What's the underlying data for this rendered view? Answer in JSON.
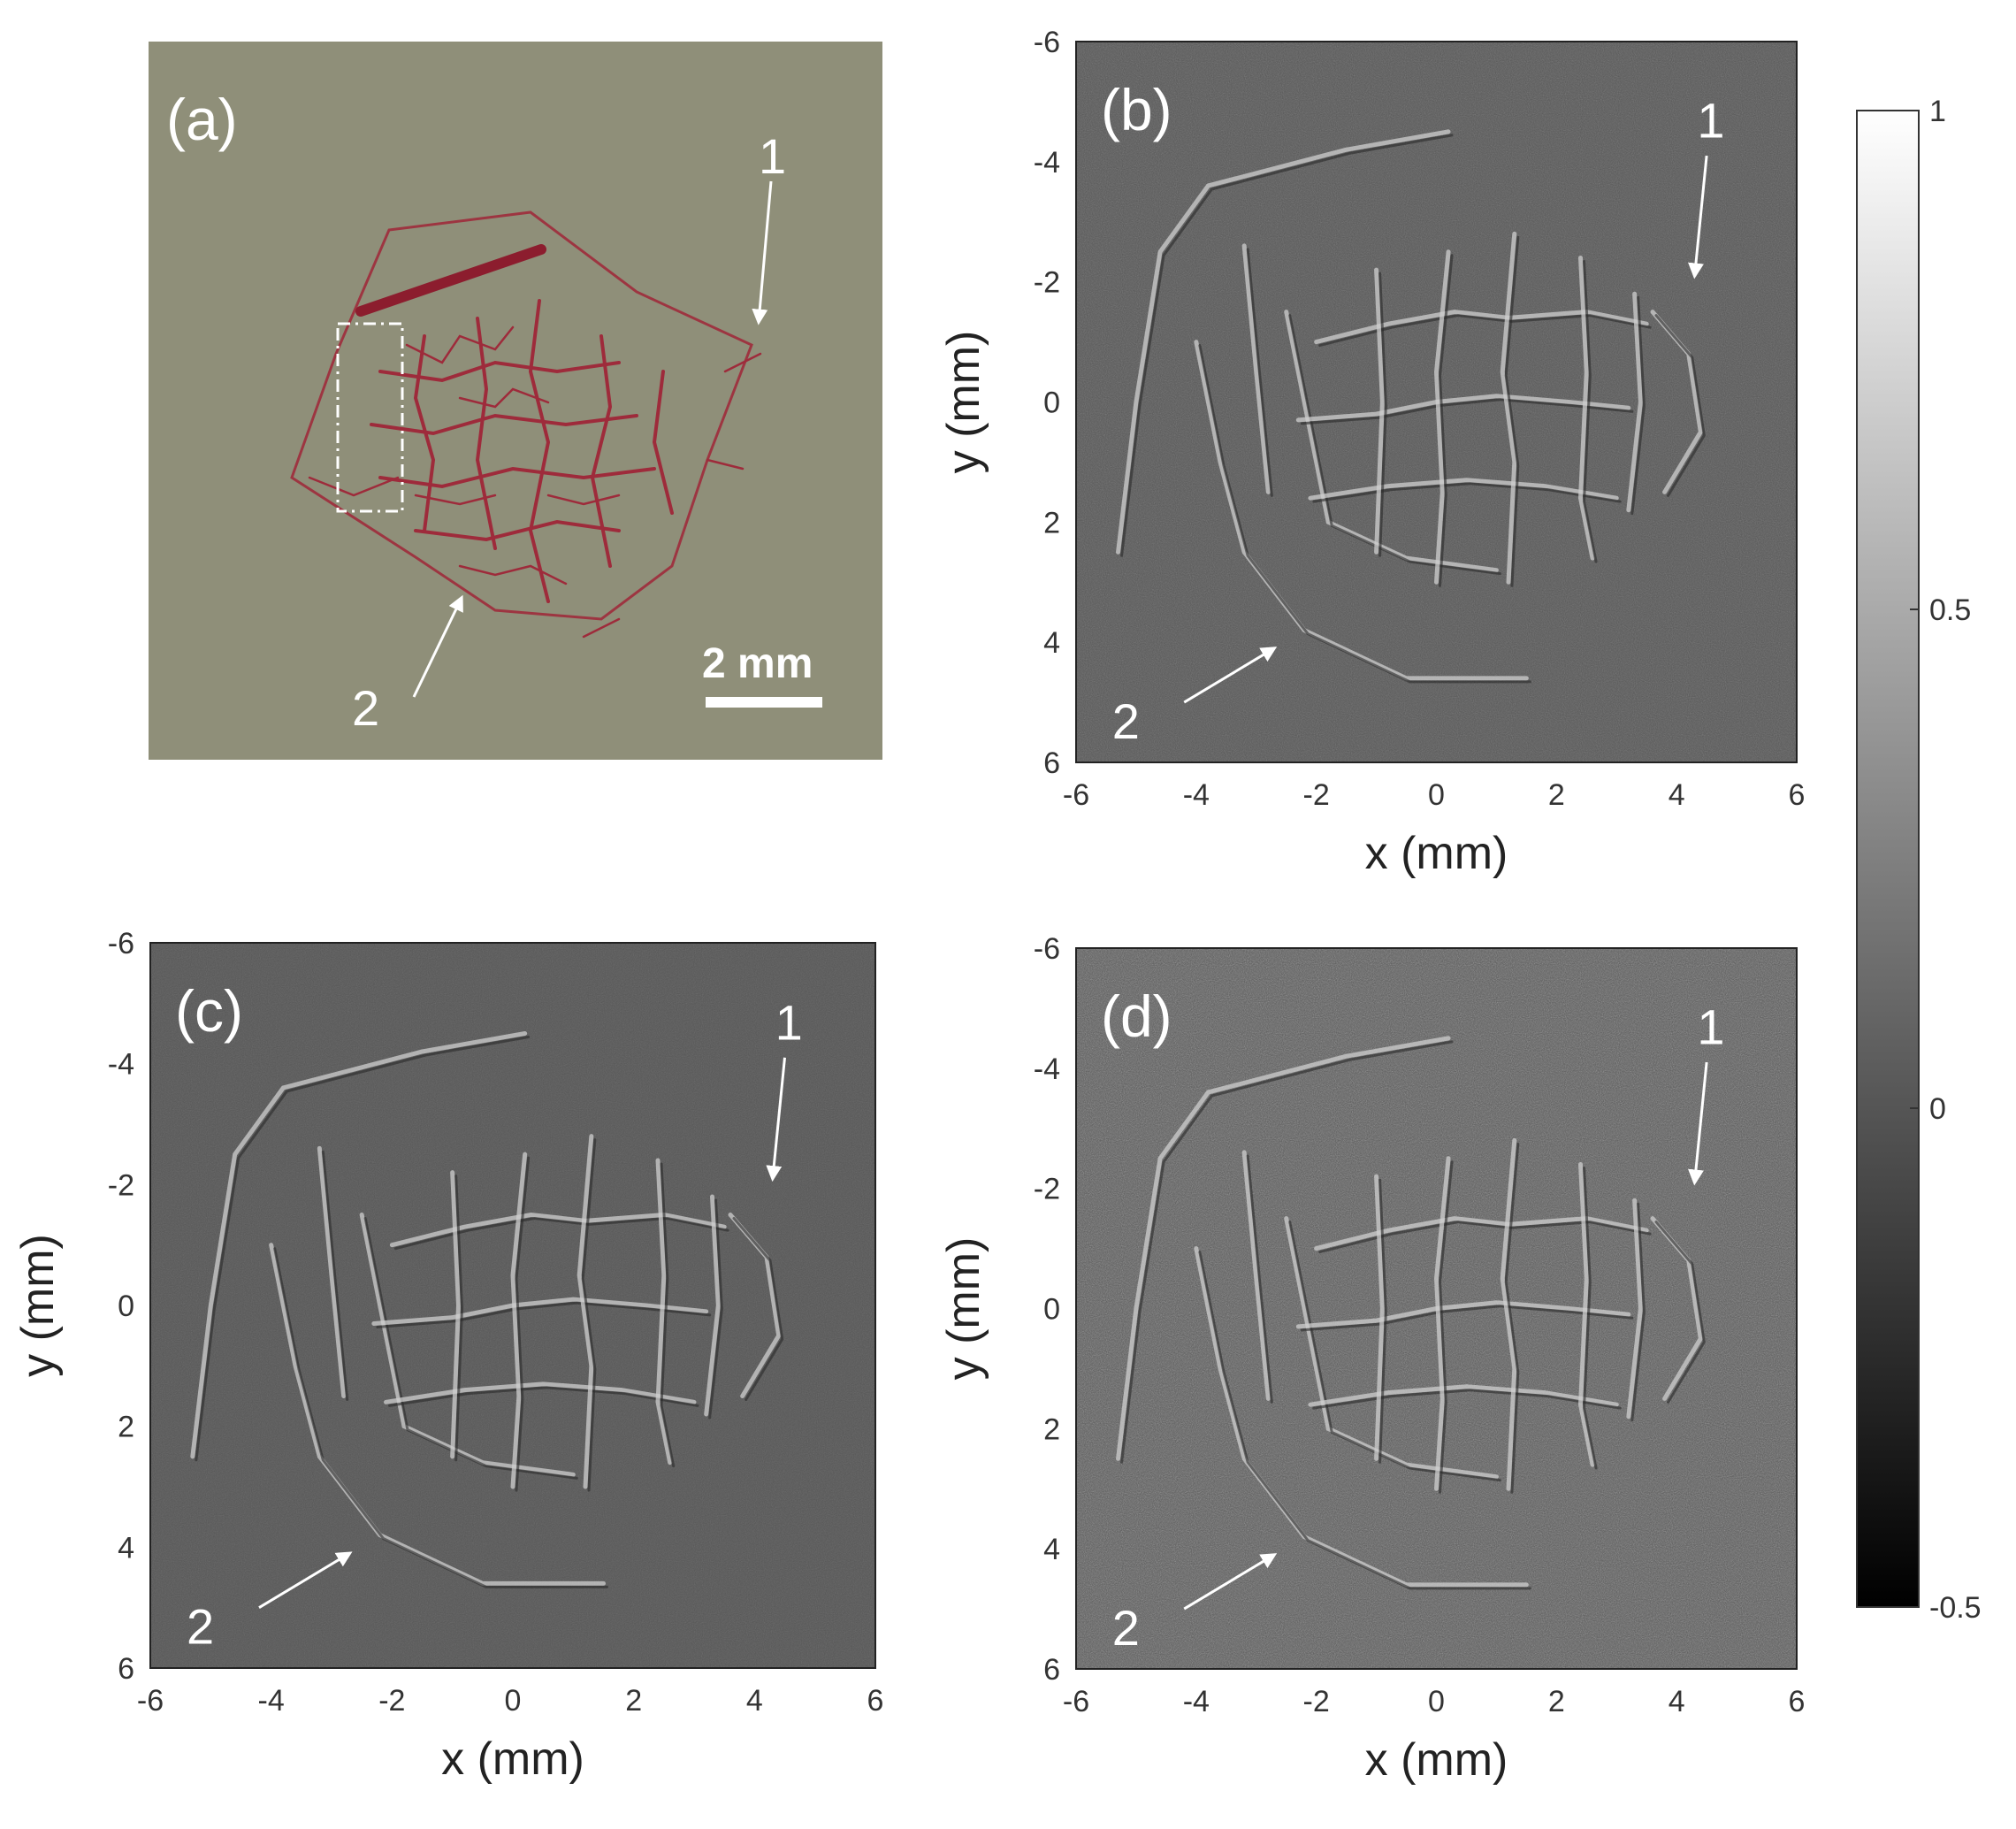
{
  "figure": {
    "panels": [
      {
        "label": "(a)",
        "kind": "photograph",
        "arrow_labels": [
          "1",
          "2"
        ],
        "scale_bar": "2 mm",
        "photo_background": "#8f8f79",
        "vein_color": "#9e2b3b"
      },
      {
        "label": "(b)",
        "kind": "reconstruction",
        "arrow_labels": [
          "1",
          "2"
        ],
        "xlabel": "x  (mm)",
        "ylabel": "y  (mm)",
        "xticks": [
          "-6",
          "-4",
          "-2",
          "0",
          "2",
          "4",
          "6"
        ],
        "yticks": [
          "-6",
          "-4",
          "-2",
          "0",
          "2",
          "4",
          "6"
        ],
        "xlim": [
          -6,
          6
        ],
        "ylim": [
          -6,
          6
        ],
        "y_axis_reversed": true,
        "noise_level": "medium"
      },
      {
        "label": "(c)",
        "kind": "reconstruction",
        "arrow_labels": [
          "1",
          "2"
        ],
        "xlabel": "x  (mm)",
        "ylabel": "y  (mm)",
        "xticks": [
          "-6",
          "-4",
          "-2",
          "0",
          "2",
          "4",
          "6"
        ],
        "yticks": [
          "-6",
          "-4",
          "-2",
          "0",
          "2",
          "4",
          "6"
        ],
        "xlim": [
          -6,
          6
        ],
        "ylim": [
          -6,
          6
        ],
        "y_axis_reversed": true,
        "noise_level": "low"
      },
      {
        "label": "(d)",
        "kind": "reconstruction",
        "arrow_labels": [
          "1",
          "2"
        ],
        "xlabel": "x  (mm)",
        "ylabel": "y  (mm)",
        "xticks": [
          "-6",
          "-4",
          "-2",
          "0",
          "2",
          "4",
          "6"
        ],
        "yticks": [
          "-6",
          "-4",
          "-2",
          "0",
          "2",
          "4",
          "6"
        ],
        "xlim": [
          -6,
          6
        ],
        "ylim": [
          -6,
          6
        ],
        "y_axis_reversed": true,
        "noise_level": "high"
      }
    ],
    "colorbar": {
      "ticks": [
        "1",
        "0.5",
        "0",
        "-0.5"
      ],
      "range": [
        -0.5,
        1
      ],
      "colormap": "gray"
    }
  }
}
